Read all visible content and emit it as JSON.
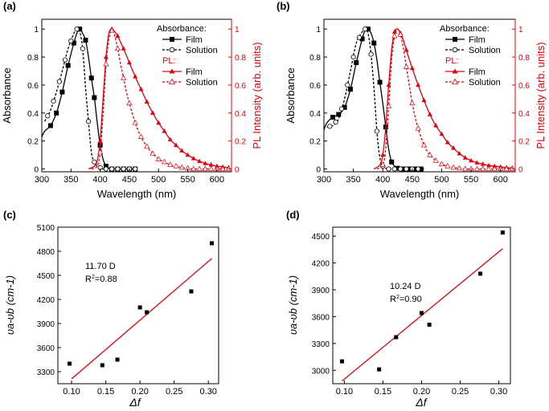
{
  "figure": {
    "panel_labels": [
      "(a)",
      "(b)",
      "(c)",
      "(d)"
    ]
  },
  "colors": {
    "black": "#000000",
    "red": "#e3000f"
  },
  "chart_data": [
    {
      "panel": "(a)",
      "type": "line",
      "xlabel": "Wavelength (nm)",
      "ylabel": "Absorbance",
      "y2label": "PL Intensity (arb. units)",
      "xlim": [
        300,
        625
      ],
      "ylim": [
        -0.02,
        1.07
      ],
      "xticks": [
        300,
        350,
        400,
        450,
        500,
        550,
        600
      ],
      "yticks": [
        0.0,
        0.2,
        0.4,
        0.6,
        0.8,
        1.0
      ],
      "y2ticks": [
        0.0,
        0.2,
        0.4,
        0.6,
        0.8,
        1.0
      ],
      "legend": {
        "abs_heading": "Absorbance:",
        "pl_heading": "PL:",
        "abs_film": "Film",
        "abs_solution": "Solution",
        "pl_film": "Film",
        "pl_solution": "Solution"
      },
      "series": [
        {
          "name": "Absorbance Film",
          "color": "#000000",
          "dash": "solid",
          "marker": "square-filled",
          "x": [
            300,
            305,
            315,
            325,
            335,
            345,
            355,
            360,
            365,
            370,
            375,
            380,
            385,
            390,
            395,
            400,
            405,
            410,
            415,
            420,
            425,
            430,
            440,
            450,
            460
          ],
          "y": [
            0.23,
            0.27,
            0.31,
            0.4,
            0.55,
            0.74,
            0.9,
            0.97,
            1.0,
            0.97,
            0.92,
            0.8,
            0.65,
            0.51,
            0.33,
            0.17,
            0.07,
            0.02,
            0.005,
            0.0,
            0.0,
            0.0,
            0.0,
            0.0,
            0.0
          ],
          "markers_x": [
            315,
            325,
            335,
            345,
            355,
            365,
            375,
            385,
            390,
            400,
            410,
            420,
            430,
            440,
            450,
            460
          ]
        },
        {
          "name": "Absorbance Solution",
          "color": "#000000",
          "dash": "dashed",
          "marker": "circle-open",
          "x": [
            305,
            315,
            325,
            335,
            345,
            355,
            360,
            365,
            370,
            375,
            380,
            385,
            390,
            395,
            400,
            405,
            410,
            420,
            430,
            440,
            450,
            460
          ],
          "y": [
            0.34,
            0.42,
            0.55,
            0.7,
            0.86,
            0.97,
            1.0,
            0.98,
            0.86,
            0.58,
            0.34,
            0.12,
            0.05,
            0.02,
            0.01,
            0.0,
            0.0,
            0.0,
            0.0,
            0.0,
            0.0,
            0.0
          ],
          "markers_x": [
            310,
            320,
            330,
            340,
            350,
            360,
            370,
            380,
            390,
            400,
            410,
            420,
            430,
            440,
            450,
            460
          ]
        },
        {
          "name": "PL Film",
          "color": "#e3000f",
          "dash": "solid",
          "marker": "triangle-filled",
          "x": [
            380,
            390,
            395,
            400,
            405,
            410,
            415,
            420,
            425,
            430,
            440,
            450,
            460,
            470,
            480,
            490,
            500,
            510,
            520,
            530,
            540,
            550,
            560,
            570,
            580,
            590,
            600,
            610,
            620
          ],
          "y": [
            0.0,
            0.02,
            0.06,
            0.2,
            0.5,
            0.8,
            0.97,
            1.0,
            0.98,
            0.95,
            0.86,
            0.76,
            0.66,
            0.57,
            0.48,
            0.4,
            0.33,
            0.27,
            0.21,
            0.17,
            0.13,
            0.1,
            0.075,
            0.055,
            0.04,
            0.03,
            0.02,
            0.015,
            0.01
          ],
          "markers_x": [
            400,
            410,
            420,
            430,
            440,
            450,
            460,
            470,
            480,
            490,
            500,
            510,
            520,
            530,
            540,
            550,
            560,
            570,
            580,
            590,
            600,
            610,
            620
          ]
        },
        {
          "name": "PL Solution",
          "color": "#e3000f",
          "dash": "dashed",
          "marker": "triangle-open",
          "x": [
            385,
            395,
            400,
            405,
            410,
            415,
            420,
            425,
            430,
            435,
            440,
            445,
            450,
            460,
            470,
            480,
            490,
            500,
            510,
            520,
            530,
            540,
            550,
            560,
            570,
            580,
            590,
            600,
            610,
            620
          ],
          "y": [
            0.0,
            0.02,
            0.12,
            0.4,
            0.75,
            0.93,
            0.99,
            0.95,
            0.86,
            0.75,
            0.65,
            0.55,
            0.47,
            0.33,
            0.23,
            0.16,
            0.11,
            0.07,
            0.05,
            0.03,
            0.02,
            0.01,
            0.005,
            0.0,
            0.0,
            0.0,
            0.0,
            0.0,
            0.0,
            0.0
          ],
          "markers_x": [
            400,
            410,
            420,
            430,
            440,
            450,
            460,
            470,
            480,
            490,
            500,
            510,
            520,
            530,
            540,
            550,
            560,
            570,
            580,
            590,
            600,
            610,
            620
          ]
        }
      ]
    },
    {
      "panel": "(b)",
      "type": "line",
      "xlabel": "Wavelength (nm)",
      "ylabel": "Absorbance",
      "y2label": "PL Intensity (arb. units)",
      "xlim": [
        300,
        625
      ],
      "ylim": [
        -0.02,
        1.07
      ],
      "xticks": [
        300,
        350,
        400,
        450,
        500,
        550,
        600
      ],
      "yticks": [
        0.0,
        0.2,
        0.4,
        0.6,
        0.8,
        1.0
      ],
      "y2ticks": [
        0.0,
        0.2,
        0.4,
        0.6,
        0.8,
        1.0
      ],
      "legend": {
        "abs_heading": "Absorbance:",
        "pl_heading": "PL:",
        "abs_film": "Film",
        "abs_solution": "Solution",
        "pl_film": "Film",
        "pl_solution": "Solution"
      },
      "series": [
        {
          "name": "Absorbance Film",
          "color": "#000000",
          "dash": "solid",
          "marker": "square-filled",
          "x": [
            300,
            305,
            315,
            325,
            335,
            345,
            355,
            365,
            370,
            375,
            380,
            385,
            390,
            395,
            400,
            405,
            410,
            415,
            420,
            425,
            430,
            440,
            450,
            460,
            470
          ],
          "y": [
            0.28,
            0.33,
            0.37,
            0.39,
            0.44,
            0.57,
            0.76,
            0.93,
            0.99,
            1.0,
            0.97,
            0.9,
            0.78,
            0.62,
            0.47,
            0.3,
            0.14,
            0.05,
            0.02,
            0.005,
            0.0,
            0.0,
            0.0,
            0.0,
            0.0
          ],
          "markers_x": [
            315,
            325,
            335,
            345,
            355,
            365,
            375,
            385,
            395,
            405,
            415,
            425,
            435,
            445,
            455,
            465
          ]
        },
        {
          "name": "Absorbance Solution",
          "color": "#000000",
          "dash": "dashed",
          "marker": "circle-open",
          "x": [
            305,
            315,
            325,
            335,
            345,
            355,
            365,
            370,
            375,
            380,
            385,
            390,
            395,
            400,
            405,
            410,
            420,
            430,
            440,
            450,
            460,
            470
          ],
          "y": [
            0.3,
            0.31,
            0.36,
            0.5,
            0.7,
            0.9,
            0.98,
            1.0,
            0.97,
            0.82,
            0.58,
            0.27,
            0.08,
            0.02,
            0.005,
            0.0,
            0.0,
            0.0,
            0.0,
            0.0,
            0.0,
            0.0
          ],
          "markers_x": [
            310,
            320,
            330,
            340,
            350,
            360,
            370,
            380,
            390,
            400,
            410,
            420,
            430,
            440,
            450,
            460
          ]
        },
        {
          "name": "PL Film",
          "color": "#e3000f",
          "dash": "solid",
          "marker": "triangle-filled",
          "x": [
            385,
            395,
            400,
            405,
            410,
            415,
            420,
            425,
            430,
            435,
            440,
            450,
            460,
            470,
            480,
            490,
            500,
            510,
            520,
            530,
            540,
            550,
            560,
            570,
            580,
            590,
            600,
            610,
            620
          ],
          "y": [
            0.0,
            0.03,
            0.1,
            0.3,
            0.6,
            0.85,
            0.98,
            1.0,
            0.97,
            0.92,
            0.85,
            0.72,
            0.6,
            0.49,
            0.39,
            0.31,
            0.25,
            0.19,
            0.15,
            0.11,
            0.08,
            0.06,
            0.045,
            0.035,
            0.025,
            0.02,
            0.015,
            0.01,
            0.008
          ],
          "markers_x": [
            400,
            410,
            420,
            430,
            440,
            450,
            460,
            470,
            480,
            490,
            500,
            510,
            520,
            530,
            540,
            550,
            560,
            570,
            580,
            590,
            600,
            610,
            620
          ]
        },
        {
          "name": "PL Solution",
          "color": "#e3000f",
          "dash": "dashed",
          "marker": "triangle-open",
          "x": [
            390,
            400,
            405,
            410,
            415,
            420,
            425,
            430,
            435,
            440,
            445,
            450,
            455,
            460,
            470,
            480,
            490,
            500,
            510,
            520,
            530,
            540,
            550,
            560,
            570,
            580,
            590,
            600,
            610,
            620
          ],
          "y": [
            0.0,
            0.03,
            0.15,
            0.45,
            0.78,
            0.95,
            1.0,
            0.96,
            0.86,
            0.73,
            0.6,
            0.47,
            0.37,
            0.29,
            0.17,
            0.1,
            0.06,
            0.035,
            0.02,
            0.01,
            0.005,
            0.0,
            0.0,
            0.0,
            0.0,
            0.0,
            0.0,
            0.0,
            0.0,
            0.0
          ],
          "markers_x": [
            400,
            410,
            420,
            430,
            440,
            450,
            460,
            470,
            480,
            490,
            500,
            510,
            520,
            530,
            540,
            550,
            560,
            570,
            580,
            590,
            600,
            610,
            620
          ]
        }
      ]
    },
    {
      "panel": "(c)",
      "type": "scatter",
      "xlabel": "Δf",
      "ylabel": "υa-υb (cm-1)",
      "xlim": [
        0.08,
        0.315
      ],
      "ylim": [
        3150,
        5100
      ],
      "xticks": [
        0.1,
        0.15,
        0.2,
        0.25,
        0.3
      ],
      "xtick_labels": [
        "0.10",
        "0.15",
        "0.20",
        "0.25",
        "0.30"
      ],
      "yticks": [
        3300,
        3600,
        3900,
        4200,
        4500,
        4800,
        5100
      ],
      "points": {
        "x": [
          0.097,
          0.145,
          0.167,
          0.2,
          0.21,
          0.275,
          0.305
        ],
        "y": [
          3400,
          3380,
          3450,
          4100,
          4040,
          4300,
          4900
        ]
      },
      "fit": {
        "x": [
          0.1,
          0.305
        ],
        "y": [
          3210,
          4710
        ]
      },
      "annotation": {
        "line1": "11.70 D",
        "r2_prefix": "R",
        "r2_suffix": "=0.88"
      }
    },
    {
      "panel": "(d)",
      "type": "scatter",
      "xlabel": "Δf",
      "ylabel": "υa-υb (cm-1)",
      "xlim": [
        0.085,
        0.315
      ],
      "ylim": [
        2850,
        4600
      ],
      "xticks": [
        0.1,
        0.15,
        0.2,
        0.25,
        0.3
      ],
      "xtick_labels": [
        "0.10",
        "0.15",
        "0.20",
        "0.25",
        "0.30"
      ],
      "yticks": [
        3000,
        3300,
        3600,
        3900,
        4200,
        4500
      ],
      "points": {
        "x": [
          0.097,
          0.145,
          0.167,
          0.2,
          0.21,
          0.276,
          0.305
        ],
        "y": [
          3100,
          3010,
          3370,
          3640,
          3510,
          4080,
          4540
        ]
      },
      "fit": {
        "x": [
          0.097,
          0.305
        ],
        "y": [
          2880,
          4360
        ]
      },
      "annotation": {
        "line1": "10.24 D",
        "r2_prefix": "R",
        "r2_suffix": "=0.90"
      }
    }
  ]
}
